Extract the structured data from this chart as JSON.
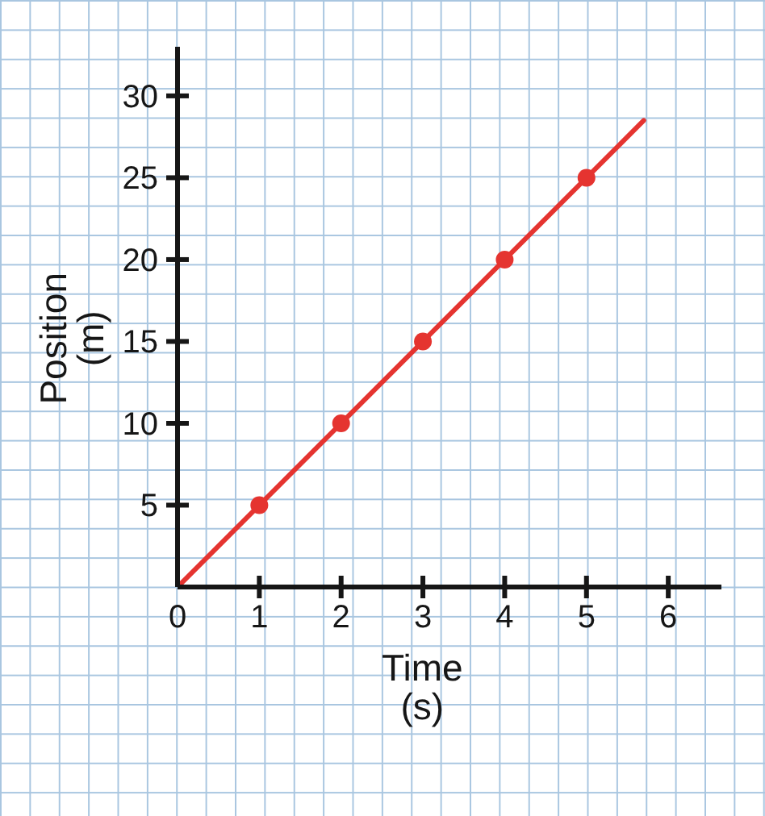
{
  "chart_data": {
    "type": "line",
    "xlabel": "Time\n(s)",
    "ylabel": "Position\n(m)",
    "xlim": [
      0,
      6.65
    ],
    "xticks": [
      0,
      1,
      2,
      3,
      4,
      5,
      6
    ],
    "ylim": [
      0,
      33
    ],
    "yticks": [
      5,
      10,
      15,
      20,
      25,
      30
    ],
    "series": [
      {
        "color": "#e53430",
        "x": [
          0,
          5.7
        ],
        "values": [
          0,
          28.5
        ],
        "marker": "none",
        "line_style": "solid"
      },
      {
        "type": "scatter",
        "color": "#e53430",
        "x": [
          1,
          2,
          3,
          4,
          5
        ],
        "values": [
          5,
          10,
          15,
          20,
          25
        ],
        "marker": "circle"
      }
    ]
  }
}
